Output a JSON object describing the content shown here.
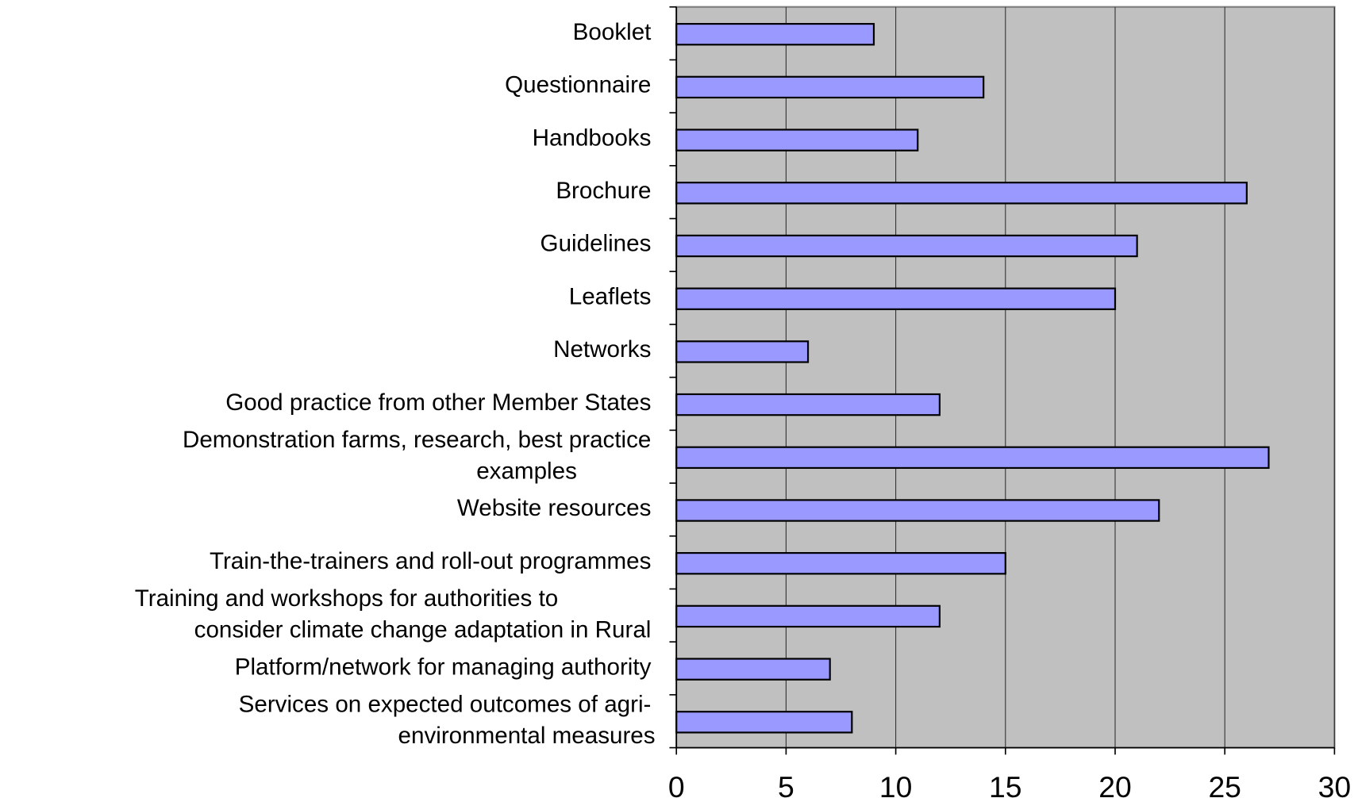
{
  "chart_data": {
    "type": "bar",
    "orientation": "horizontal",
    "categories": [
      "Booklet",
      "Questionnaire",
      "Handbooks",
      "Brochure",
      "Guidelines",
      "Leaflets",
      "Networks",
      "Good practice from other Member States",
      "Demonstration farms, research, best practice\nexamples",
      "Website resources",
      "Train-the-trainers and roll-out programmes",
      "Training and workshops for authorities to\nconsider climate change adaptation in Rural",
      "Platform/network for managing authority",
      "Services on expected outcomes of agri-\nenvironmental measures"
    ],
    "values": [
      9,
      14,
      11,
      26,
      21,
      20,
      6,
      12,
      27,
      22,
      15,
      12,
      7,
      8
    ],
    "color": "#9999ff",
    "xlim": [
      0,
      30
    ],
    "xticks": [
      0,
      5,
      10,
      15,
      20,
      25,
      30
    ],
    "grid": true
  }
}
